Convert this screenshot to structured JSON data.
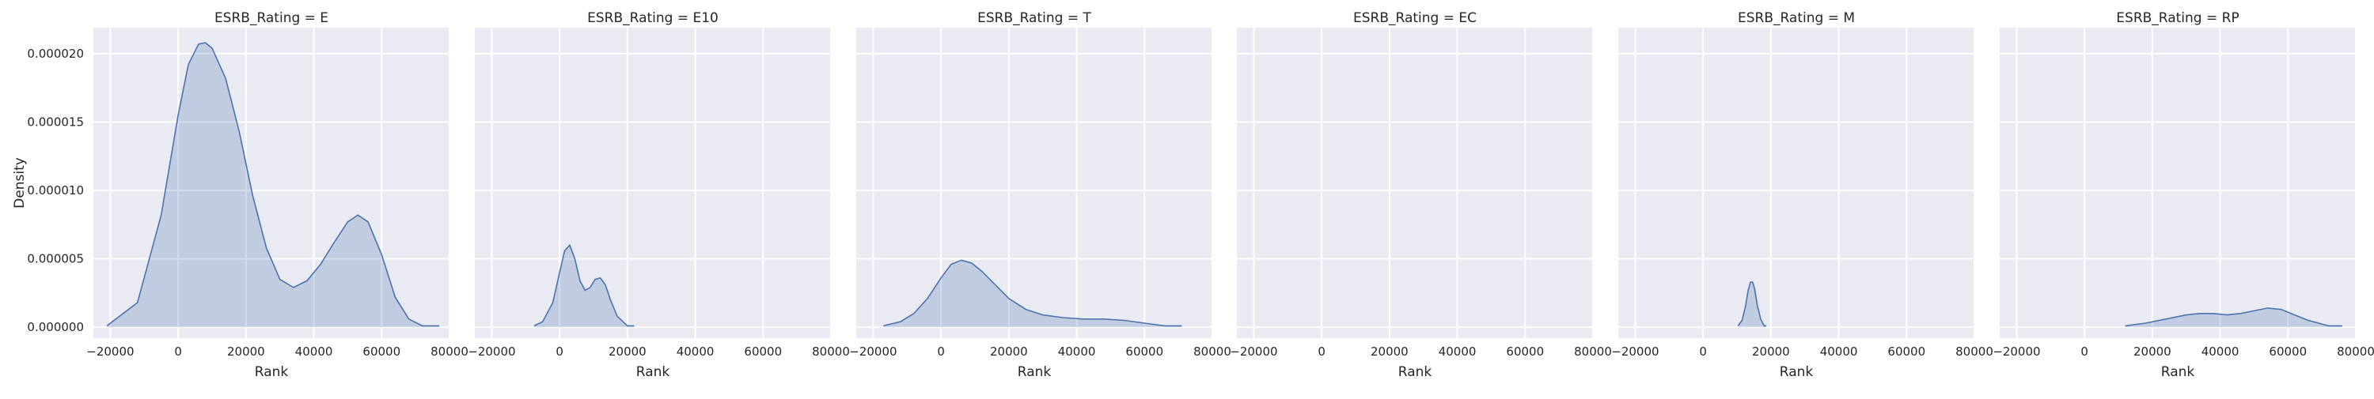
{
  "chart_data": {
    "type": "area",
    "facet_label_prefix": "ESRB_Rating = ",
    "xlabel": "Rank",
    "ylabel": "Density",
    "xlim": [
      -25000,
      80000
    ],
    "ylim": [
      -8e-07,
      2.19e-05
    ],
    "x_ticks": [
      -20000,
      0,
      20000,
      40000,
      60000,
      80000
    ],
    "x_tick_labels": [
      "−20000",
      "0",
      "20000",
      "40000",
      "60000",
      "80000"
    ],
    "y_ticks": [
      0,
      5e-06,
      1e-05,
      1.5e-05,
      2e-05
    ],
    "y_tick_labels": [
      "0.000000",
      "0.000005",
      "0.000010",
      "0.000015",
      "0.000020"
    ],
    "grid": true,
    "color": "#4c72b0",
    "panels": [
      {
        "rating": "E",
        "title": "ESRB_Rating = E",
        "x": [
          -21000,
          -12000,
          -5000,
          0,
          3000,
          6000,
          8000,
          10000,
          14000,
          18000,
          22000,
          26000,
          30000,
          34000,
          38000,
          42000,
          46000,
          50000,
          53000,
          56000,
          60000,
          64000,
          68000,
          72000,
          77000
        ],
        "y": [
          1e-07,
          1.8e-06,
          8.2e-06,
          1.55e-05,
          1.92e-05,
          2.07e-05,
          2.08e-05,
          2.04e-05,
          1.82e-05,
          1.43e-05,
          9.6e-06,
          5.8e-06,
          3.5e-06,
          2.9e-06,
          3.4e-06,
          4.6e-06,
          6.2e-06,
          7.7e-06,
          8.2e-06,
          7.7e-06,
          5.3e-06,
          2.2e-06,
          6e-07,
          1e-07,
          1e-07
        ]
      },
      {
        "rating": "E10",
        "title": "ESRB_Rating = E10",
        "x": [
          -7500,
          -5000,
          -2000,
          0,
          1500,
          3000,
          4500,
          6000,
          7500,
          9000,
          10500,
          12000,
          13500,
          15000,
          17000,
          20000,
          22000
        ],
        "y": [
          1e-07,
          4e-07,
          1.8e-06,
          4e-06,
          5.6e-06,
          6e-06,
          5e-06,
          3.4e-06,
          2.7e-06,
          2.9e-06,
          3.5e-06,
          3.6e-06,
          3.1e-06,
          2e-06,
          8e-07,
          1e-07,
          1e-07
        ]
      },
      {
        "rating": "T",
        "title": "ESRB_Rating = T",
        "x": [
          -17000,
          -12000,
          -8000,
          -4000,
          0,
          3000,
          6000,
          9000,
          12000,
          16000,
          20000,
          25000,
          30000,
          36000,
          42000,
          48000,
          54000,
          60000,
          66000,
          71000
        ],
        "y": [
          1e-07,
          4e-07,
          1e-06,
          2.1e-06,
          3.6e-06,
          4.6e-06,
          4.9e-06,
          4.7e-06,
          4.1e-06,
          3.1e-06,
          2.1e-06,
          1.3e-06,
          9e-07,
          7e-07,
          6e-07,
          6e-07,
          5e-07,
          3e-07,
          1e-07,
          1e-07
        ]
      },
      {
        "rating": "EC",
        "title": "ESRB_Rating = EC",
        "x": [],
        "y": []
      },
      {
        "rating": "M",
        "title": "ESRB_Rating = M",
        "x": [
          10300,
          11500,
          12500,
          13300,
          14000,
          14600,
          15200,
          16000,
          17000,
          18000,
          18700
        ],
        "y": [
          1e-07,
          5e-07,
          1.5e-06,
          2.7e-06,
          3.3e-06,
          3.3e-06,
          2.8e-06,
          1.6e-06,
          6e-07,
          1e-07,
          1e-07
        ]
      },
      {
        "rating": "RP",
        "title": "ESRB_Rating = RP",
        "x": [
          12000,
          18000,
          24000,
          30000,
          34000,
          38000,
          42000,
          46000,
          50000,
          54000,
          58000,
          62000,
          66000,
          72000,
          76000
        ],
        "y": [
          1e-07,
          3e-07,
          6e-07,
          9e-07,
          1e-06,
          1e-06,
          9e-07,
          1e-06,
          1.2e-06,
          1.4e-06,
          1.3e-06,
          9e-07,
          5e-07,
          1e-07,
          1e-07
        ]
      }
    ]
  }
}
